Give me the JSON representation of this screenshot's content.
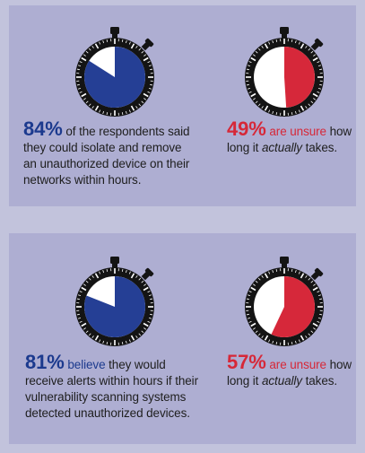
{
  "colors": {
    "blue": "#253f95",
    "red": "#d6283a",
    "dial_bg": "#ffffff",
    "case": "#141414"
  },
  "chart_data": [
    {
      "type": "pie",
      "description_label": "84%",
      "value": 84,
      "color": "#253f95",
      "caption": {
        "pct": "84%",
        "text": "of the respondents said they could isolate and remove an unauthorized device on their networks within hours."
      }
    },
    {
      "type": "pie",
      "value": 49,
      "color": "#d6283a",
      "caption": {
        "pct": "49%",
        "highlight": "are unsure",
        "text1": "how long it",
        "italic": "actually",
        "text2": "takes."
      }
    },
    {
      "type": "pie",
      "value": 81,
      "color": "#253f95",
      "caption": {
        "pct": "81%",
        "highlight": "believe",
        "text": "they would receive alerts within hours if their vulnerability scanning systems detected unauthorized devices."
      }
    },
    {
      "type": "pie",
      "value": 57,
      "color": "#d6283a",
      "caption": {
        "pct": "57%",
        "highlight": "are unsure",
        "text1": "how long it",
        "italic": "actually",
        "text2": "takes."
      }
    }
  ]
}
